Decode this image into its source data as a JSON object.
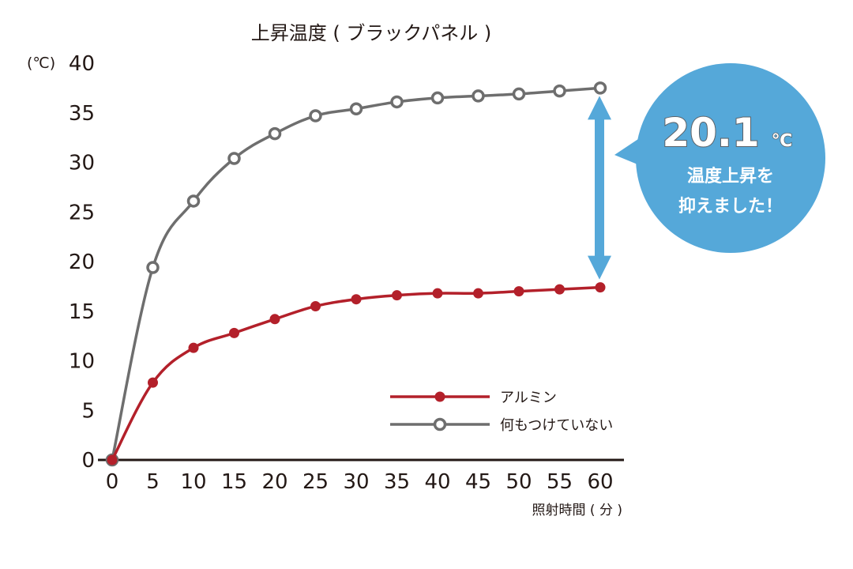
{
  "chart_data": {
    "type": "line",
    "title": "上昇温度 ( ブラックパネル )",
    "ylabel": "(℃)",
    "xlabel": "照射時間 ( 分 )",
    "x": [
      0,
      5,
      10,
      15,
      20,
      25,
      30,
      35,
      40,
      45,
      50,
      55,
      60
    ],
    "xlim": [
      0,
      60
    ],
    "ylim": [
      0,
      40
    ],
    "yticks": [
      0,
      5,
      10,
      15,
      20,
      25,
      30,
      35,
      40
    ],
    "xticks": [
      0,
      5,
      10,
      15,
      20,
      25,
      30,
      35,
      40,
      45,
      50,
      55,
      60
    ],
    "grid": false,
    "legend_position": "bottom-right",
    "series": [
      {
        "name": "アルミン",
        "color": "#b3202a",
        "marker": "filled-circle",
        "values": [
          0,
          7.8,
          11.3,
          12.8,
          14.2,
          15.5,
          16.2,
          16.6,
          16.8,
          16.8,
          17.0,
          17.2,
          17.4
        ]
      },
      {
        "name": "何もつけていない",
        "color": "#6e6e6e",
        "marker": "open-circle",
        "values": [
          0,
          19.4,
          26.1,
          30.4,
          32.9,
          34.7,
          35.4,
          36.1,
          36.5,
          36.7,
          36.9,
          37.2,
          37.5
        ]
      }
    ],
    "annotation": {
      "value": "20.1",
      "unit": "℃",
      "line1": "温度上昇を",
      "line2": "抑えました！",
      "bubble_color": "#55a8d9",
      "arrow_color": "#55a8d9"
    }
  }
}
